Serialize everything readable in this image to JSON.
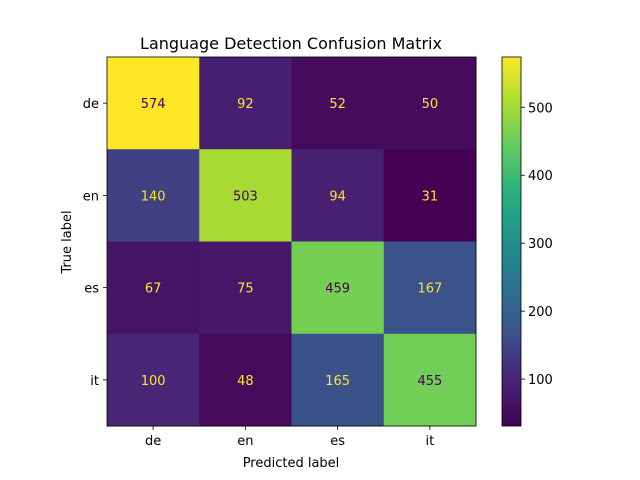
{
  "chart_data": {
    "type": "heatmap",
    "title": "Language Detection Confusion Matrix",
    "xlabel": "Predicted label",
    "ylabel": "True label",
    "x_categories": [
      "de",
      "en",
      "es",
      "it"
    ],
    "y_categories": [
      "de",
      "en",
      "es",
      "it"
    ],
    "values": [
      [
        574,
        92,
        52,
        50
      ],
      [
        140,
        503,
        94,
        31
      ],
      [
        67,
        75,
        459,
        167
      ],
      [
        100,
        48,
        165,
        455
      ]
    ],
    "colormap": "viridis",
    "colorbar": {
      "range": [
        31,
        574
      ],
      "ticks": [
        100,
        200,
        300,
        400,
        500
      ],
      "tick_labels": [
        "100",
        "200",
        "300",
        "400",
        "500"
      ]
    },
    "text_colors": {
      "on_dark": "#fde725",
      "on_light": "#440154"
    },
    "grid": false,
    "legend": "colorbar-right"
  }
}
